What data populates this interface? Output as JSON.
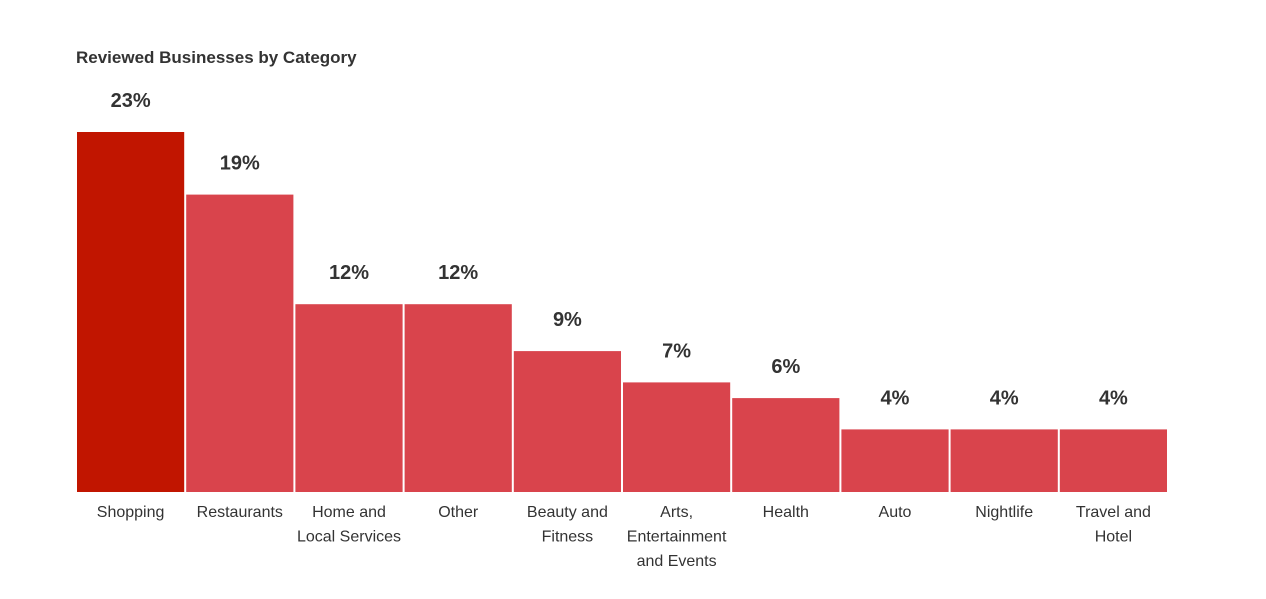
{
  "chart_data": {
    "type": "bar",
    "title": "Reviewed Businesses by Category",
    "categories": [
      [
        "Shopping"
      ],
      [
        "Restaurants"
      ],
      [
        "Home and",
        "Local Services"
      ],
      [
        "Other"
      ],
      [
        "Beauty and",
        "Fitness"
      ],
      [
        "Arts,",
        "Entertainment",
        "and Events"
      ],
      [
        "Health"
      ],
      [
        "Auto"
      ],
      [
        "Nightlife"
      ],
      [
        "Travel and",
        "Hotel"
      ]
    ],
    "values": [
      23,
      19,
      12,
      12,
      9,
      7,
      6,
      4,
      4,
      4
    ],
    "value_labels": [
      "23%",
      "19%",
      "12%",
      "12%",
      "9%",
      "7%",
      "6%",
      "4%",
      "4%",
      "4%"
    ],
    "unit": "%",
    "ylim": [
      0,
      23
    ],
    "grid": false,
    "legend": "none",
    "highlight_index": 0,
    "colors": {
      "highlight": "#c11500",
      "bar": "#d9444c",
      "text": "#333333"
    }
  }
}
